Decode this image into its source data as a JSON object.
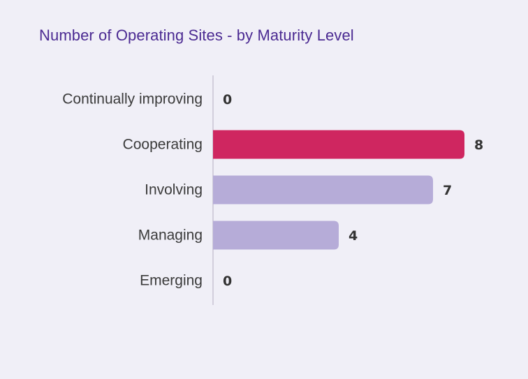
{
  "chart_data": {
    "type": "bar",
    "orientation": "horizontal",
    "title": "Number of Operating Sites - by Maturity Level",
    "categories": [
      "Continually improving",
      "Cooperating",
      "Involving",
      "Managing",
      "Emerging"
    ],
    "values": [
      0,
      8,
      7,
      4,
      0
    ],
    "xlim": [
      0,
      8
    ],
    "grid": false,
    "colors": {
      "default": "#b6acd8",
      "highlight": "#cf2660",
      "highlight_category": "Cooperating",
      "axis": "#c7c4d3",
      "title": "#4b2a92"
    }
  }
}
